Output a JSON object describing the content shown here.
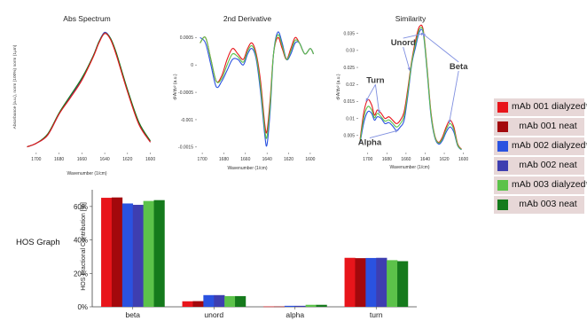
{
  "side_label": "HOS Graph",
  "legend": [
    {
      "label": "mAb 001 dialyzed*",
      "color": "#e8151b"
    },
    {
      "label": "mAb 001 neat",
      "color": "#a3080c"
    },
    {
      "label": "mAb 002 dialyzed*",
      "color": "#2a52e0"
    },
    {
      "label": "mAb 002 neat",
      "color": "#3e3eb0"
    },
    {
      "label": "mAb 003 dialyzed*",
      "color": "#5cc24a"
    },
    {
      "label": "mAb 003 neat",
      "color": "#157a1c"
    }
  ],
  "chart_data": [
    {
      "type": "line",
      "title": "Abs Spectrum",
      "xlabel": "Wavenumber (1/cm)",
      "ylabel": "Absorbance (a.u.), norm (100%) norm (1μm)",
      "xlim": [
        1710,
        1595
      ],
      "x_reversed": true,
      "x_ticks": [
        1700,
        1680,
        1660,
        1640,
        1620,
        1600
      ],
      "y_ticks": [],
      "series": [
        {
          "color": "#3e3eb0",
          "x": [
            1708,
            1700,
            1690,
            1680,
            1670,
            1660,
            1650,
            1645,
            1640,
            1635,
            1630,
            1620,
            1610,
            1600
          ],
          "y": [
            0.02,
            0.05,
            0.12,
            0.3,
            0.45,
            0.6,
            0.8,
            0.92,
            1.0,
            0.95,
            0.82,
            0.5,
            0.22,
            0.06
          ]
        },
        {
          "color": "#157a1c",
          "x": [
            1708,
            1700,
            1690,
            1680,
            1670,
            1660,
            1650,
            1645,
            1640,
            1635,
            1630,
            1620,
            1610,
            1600
          ],
          "y": [
            0.02,
            0.05,
            0.13,
            0.31,
            0.46,
            0.61,
            0.8,
            0.92,
            0.99,
            0.95,
            0.83,
            0.51,
            0.23,
            0.07
          ]
        },
        {
          "color": "#e8151b",
          "x": [
            1708,
            1700,
            1690,
            1680,
            1670,
            1660,
            1650,
            1645,
            1640,
            1635,
            1630,
            1620,
            1610,
            1600
          ],
          "y": [
            0.02,
            0.05,
            0.12,
            0.3,
            0.44,
            0.59,
            0.79,
            0.91,
            0.99,
            0.94,
            0.81,
            0.49,
            0.21,
            0.06
          ]
        }
      ]
    },
    {
      "type": "line",
      "title": "2nd Derivative",
      "xlabel": "Wavenumber (1/cm)",
      "ylabel": "d²A/dν² (a.u.)",
      "xlim": [
        1705,
        1595
      ],
      "x_reversed": true,
      "ylim": [
        -0.0016,
        0.0007
      ],
      "x_ticks": [
        1700,
        1680,
        1660,
        1640,
        1620,
        1600
      ],
      "y_ticks": [
        {
          "value": 0.0005,
          "label": "0.0005"
        },
        {
          "value": 0,
          "label": "0"
        },
        {
          "value": -0.0005,
          "label": "-0.0005"
        },
        {
          "value": -0.001,
          "label": "-0.001"
        },
        {
          "value": -0.0015,
          "label": "-0.0015"
        }
      ],
      "series": [
        {
          "color": "#e8151b",
          "x": [
            1702,
            1697,
            1692,
            1687,
            1682,
            1677,
            1672,
            1667,
            1662,
            1658,
            1654,
            1650,
            1646,
            1642,
            1640,
            1637,
            1634,
            1630,
            1626,
            1622,
            1618,
            1614,
            1610,
            1605,
            1600,
            1597
          ],
          "y": [
            0.0004,
            0.0005,
            0.0001,
            -0.0003,
            -0.0002,
            0.0001,
            0.0003,
            0.0002,
            0.0001,
            0.0003,
            0.0004,
            0.0002,
            -0.0003,
            -0.0011,
            -0.0012,
            -0.0006,
            0.0002,
            0.0005,
            0.0003,
            0.0001,
            0.0003,
            0.0005,
            0.0004,
            0.0002,
            0.0003,
            0.0002
          ]
        },
        {
          "color": "#2a52e0",
          "x": [
            1702,
            1697,
            1692,
            1687,
            1682,
            1677,
            1672,
            1667,
            1662,
            1658,
            1654,
            1650,
            1646,
            1642,
            1640,
            1637,
            1634,
            1630,
            1626,
            1622,
            1618,
            1614,
            1610,
            1605,
            1600,
            1597
          ],
          "y": [
            0.0005,
            0.0004,
            0.0,
            -0.0004,
            -0.0003,
            -0.0001,
            0.0001,
            0.0001,
            0.0,
            0.0002,
            0.0003,
            0.0001,
            -0.0005,
            -0.0013,
            -0.00145,
            -0.0008,
            0.0002,
            0.0006,
            0.0004,
            0.0001,
            0.0002,
            0.0004,
            0.0004,
            0.0002,
            0.0003,
            0.0002
          ]
        },
        {
          "color": "#5cc24a",
          "x": [
            1702,
            1697,
            1692,
            1687,
            1682,
            1677,
            1672,
            1667,
            1662,
            1658,
            1654,
            1650,
            1646,
            1642,
            1640,
            1637,
            1634,
            1630,
            1626,
            1622,
            1618,
            1614,
            1610,
            1605,
            1600,
            1597
          ],
          "y": [
            0.0004,
            0.0005,
            0.0001,
            -0.0003,
            -0.00025,
            0.0,
            0.0002,
            0.00015,
            5e-05,
            0.00025,
            0.00035,
            0.00015,
            -0.0004,
            -0.0012,
            -0.0013,
            -0.0007,
            0.0002,
            0.00055,
            0.00035,
            0.0001,
            0.00025,
            0.00045,
            0.0004,
            0.0002,
            0.0003,
            0.0002
          ]
        }
      ]
    },
    {
      "type": "line",
      "title": "Similarity",
      "xlabel": "Wavenumber (1/cm)",
      "ylabel": "d²A/dν² (a.u.)",
      "xlim": [
        1710,
        1595
      ],
      "x_reversed": true,
      "ylim": [
        0,
        0.037
      ],
      "x_ticks": [
        1700,
        1680,
        1660,
        1640,
        1620,
        1600
      ],
      "y_ticks": [
        {
          "value": 0.035,
          "label": "0.035"
        },
        {
          "value": 0.03,
          "label": "0.03"
        },
        {
          "value": 0.025,
          "label": "0.025"
        },
        {
          "value": 0.02,
          "label": "0.02"
        },
        {
          "value": 0.015,
          "label": "0.015"
        },
        {
          "value": 0.01,
          "label": "0.01"
        },
        {
          "value": 0.005,
          "label": "0.005"
        }
      ],
      "annotations": [
        {
          "text": "Unord",
          "x": 1663,
          "y": 0.0315
        },
        {
          "text": "Turn",
          "x": 1692,
          "y": 0.0205
        },
        {
          "text": "Beta",
          "x": 1605,
          "y": 0.0245
        },
        {
          "text": "Alpha",
          "x": 1698,
          "y": 0.0022
        }
      ],
      "series": [
        {
          "color": "#e8151b",
          "x": [
            1708,
            1704,
            1700,
            1696,
            1693,
            1690,
            1686,
            1682,
            1678,
            1674,
            1670,
            1666,
            1662,
            1658,
            1654,
            1650,
            1646,
            1642,
            1638,
            1634,
            1630,
            1626,
            1622,
            1618,
            1614,
            1610,
            1606,
            1602
          ],
          "y": [
            0.004,
            0.012,
            0.0155,
            0.014,
            0.011,
            0.0125,
            0.0115,
            0.01,
            0.0105,
            0.0095,
            0.0085,
            0.0095,
            0.012,
            0.019,
            0.027,
            0.033,
            0.037,
            0.036,
            0.025,
            0.012,
            0.005,
            0.003,
            0.0045,
            0.0075,
            0.0095,
            0.0075,
            0.0025,
            0.001
          ]
        },
        {
          "color": "#2a52e0",
          "x": [
            1708,
            1704,
            1700,
            1696,
            1693,
            1690,
            1686,
            1682,
            1678,
            1674,
            1670,
            1666,
            1662,
            1658,
            1654,
            1650,
            1646,
            1642,
            1638,
            1634,
            1630,
            1626,
            1622,
            1618,
            1614,
            1610,
            1606,
            1602
          ],
          "y": [
            0.003,
            0.009,
            0.012,
            0.0115,
            0.0095,
            0.0105,
            0.01,
            0.0085,
            0.0088,
            0.0078,
            0.0065,
            0.0075,
            0.0095,
            0.017,
            0.026,
            0.031,
            0.0355,
            0.035,
            0.024,
            0.011,
            0.0045,
            0.0025,
            0.0035,
            0.006,
            0.0075,
            0.006,
            0.002,
            0.0008
          ]
        },
        {
          "color": "#5cc24a",
          "x": [
            1708,
            1704,
            1700,
            1696,
            1693,
            1690,
            1686,
            1682,
            1678,
            1674,
            1670,
            1666,
            1662,
            1658,
            1654,
            1650,
            1646,
            1642,
            1638,
            1634,
            1630,
            1626,
            1622,
            1618,
            1614,
            1610,
            1606,
            1602
          ],
          "y": [
            0.0035,
            0.0105,
            0.0135,
            0.0125,
            0.0102,
            0.0115,
            0.0105,
            0.0092,
            0.0096,
            0.0086,
            0.0075,
            0.0085,
            0.0108,
            0.018,
            0.0265,
            0.032,
            0.0362,
            0.0355,
            0.0245,
            0.0115,
            0.0048,
            0.0028,
            0.004,
            0.0068,
            0.0085,
            0.0068,
            0.0022,
            0.0009
          ]
        }
      ]
    },
    {
      "type": "bar",
      "title": "",
      "xlabel": "",
      "ylabel": "HOS Fractional Contribution [%]",
      "ylim": [
        0,
        70
      ],
      "y_ticks": [
        {
          "value": 0,
          "label": "0%"
        },
        {
          "value": 20,
          "label": "20%"
        },
        {
          "value": 40,
          "label": "40%"
        },
        {
          "value": 60,
          "label": "60%"
        }
      ],
      "categories": [
        "beta",
        "unord",
        "alpha",
        "turn"
      ],
      "series": [
        {
          "name": "mAb 001 dialyzed*",
          "color": "#e8151b",
          "values": [
            65.2,
            3.3,
            0.2,
            29.3
          ]
        },
        {
          "name": "mAb 001 neat",
          "color": "#a3080c",
          "values": [
            65.4,
            3.4,
            0.2,
            29.1
          ]
        },
        {
          "name": "mAb 002 dialyzed*",
          "color": "#2a52e0",
          "values": [
            61.8,
            7.0,
            0.6,
            29.2
          ]
        },
        {
          "name": "mAb 002 neat",
          "color": "#3e3eb0",
          "values": [
            61.0,
            7.0,
            0.6,
            29.3
          ]
        },
        {
          "name": "mAb 003 dialyzed*",
          "color": "#5cc24a",
          "values": [
            63.3,
            6.4,
            1.2,
            27.9
          ]
        },
        {
          "name": "mAb 003 neat",
          "color": "#157a1c",
          "values": [
            63.8,
            6.4,
            1.2,
            27.3
          ]
        }
      ]
    }
  ]
}
